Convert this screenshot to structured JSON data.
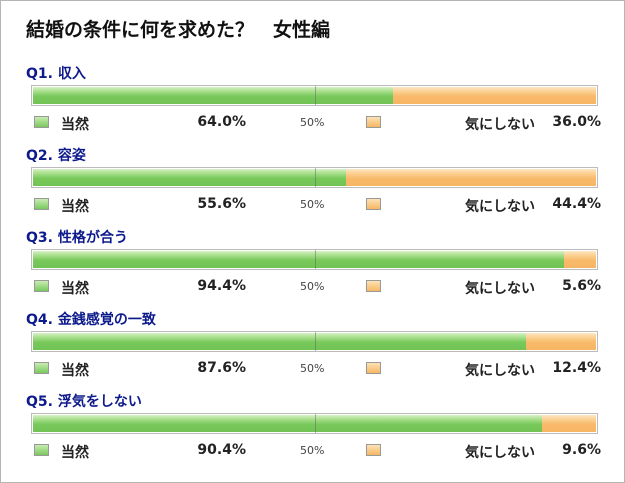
{
  "title": "結婚の条件に何を求めた？　女性編",
  "legend": {
    "yes": "当然",
    "no": "気にしない",
    "mid": "50%"
  },
  "colors": {
    "green": "#78c95a",
    "orange": "#f8ba6a"
  },
  "chart_data": {
    "type": "bar",
    "orientation": "horizontal-stacked",
    "xlim": [
      0,
      100
    ],
    "series": [
      {
        "name": "当然",
        "values": [
          64.0,
          55.6,
          94.4,
          87.6,
          90.4
        ]
      },
      {
        "name": "気にしない",
        "values": [
          36.0,
          44.4,
          5.6,
          12.4,
          9.6
        ]
      }
    ],
    "questions": [
      {
        "label": "Q1. 収入",
        "yes": 64.0,
        "no": 36.0,
        "yes_text": "64.0%",
        "no_text": "36.0%"
      },
      {
        "label": "Q2. 容姿",
        "yes": 55.6,
        "no": 44.4,
        "yes_text": "55.6%",
        "no_text": "44.4%"
      },
      {
        "label": "Q3. 性格が合う",
        "yes": 94.4,
        "no": 5.6,
        "yes_text": "94.4%",
        "no_text": "5.6%"
      },
      {
        "label": "Q4. 金銭感覚の一致",
        "yes": 87.6,
        "no": 12.4,
        "yes_text": "87.6%",
        "no_text": "12.4%"
      },
      {
        "label": "Q5. 浮気をしない",
        "yes": 90.4,
        "no": 9.6,
        "yes_text": "90.4%",
        "no_text": "9.6%"
      }
    ]
  }
}
